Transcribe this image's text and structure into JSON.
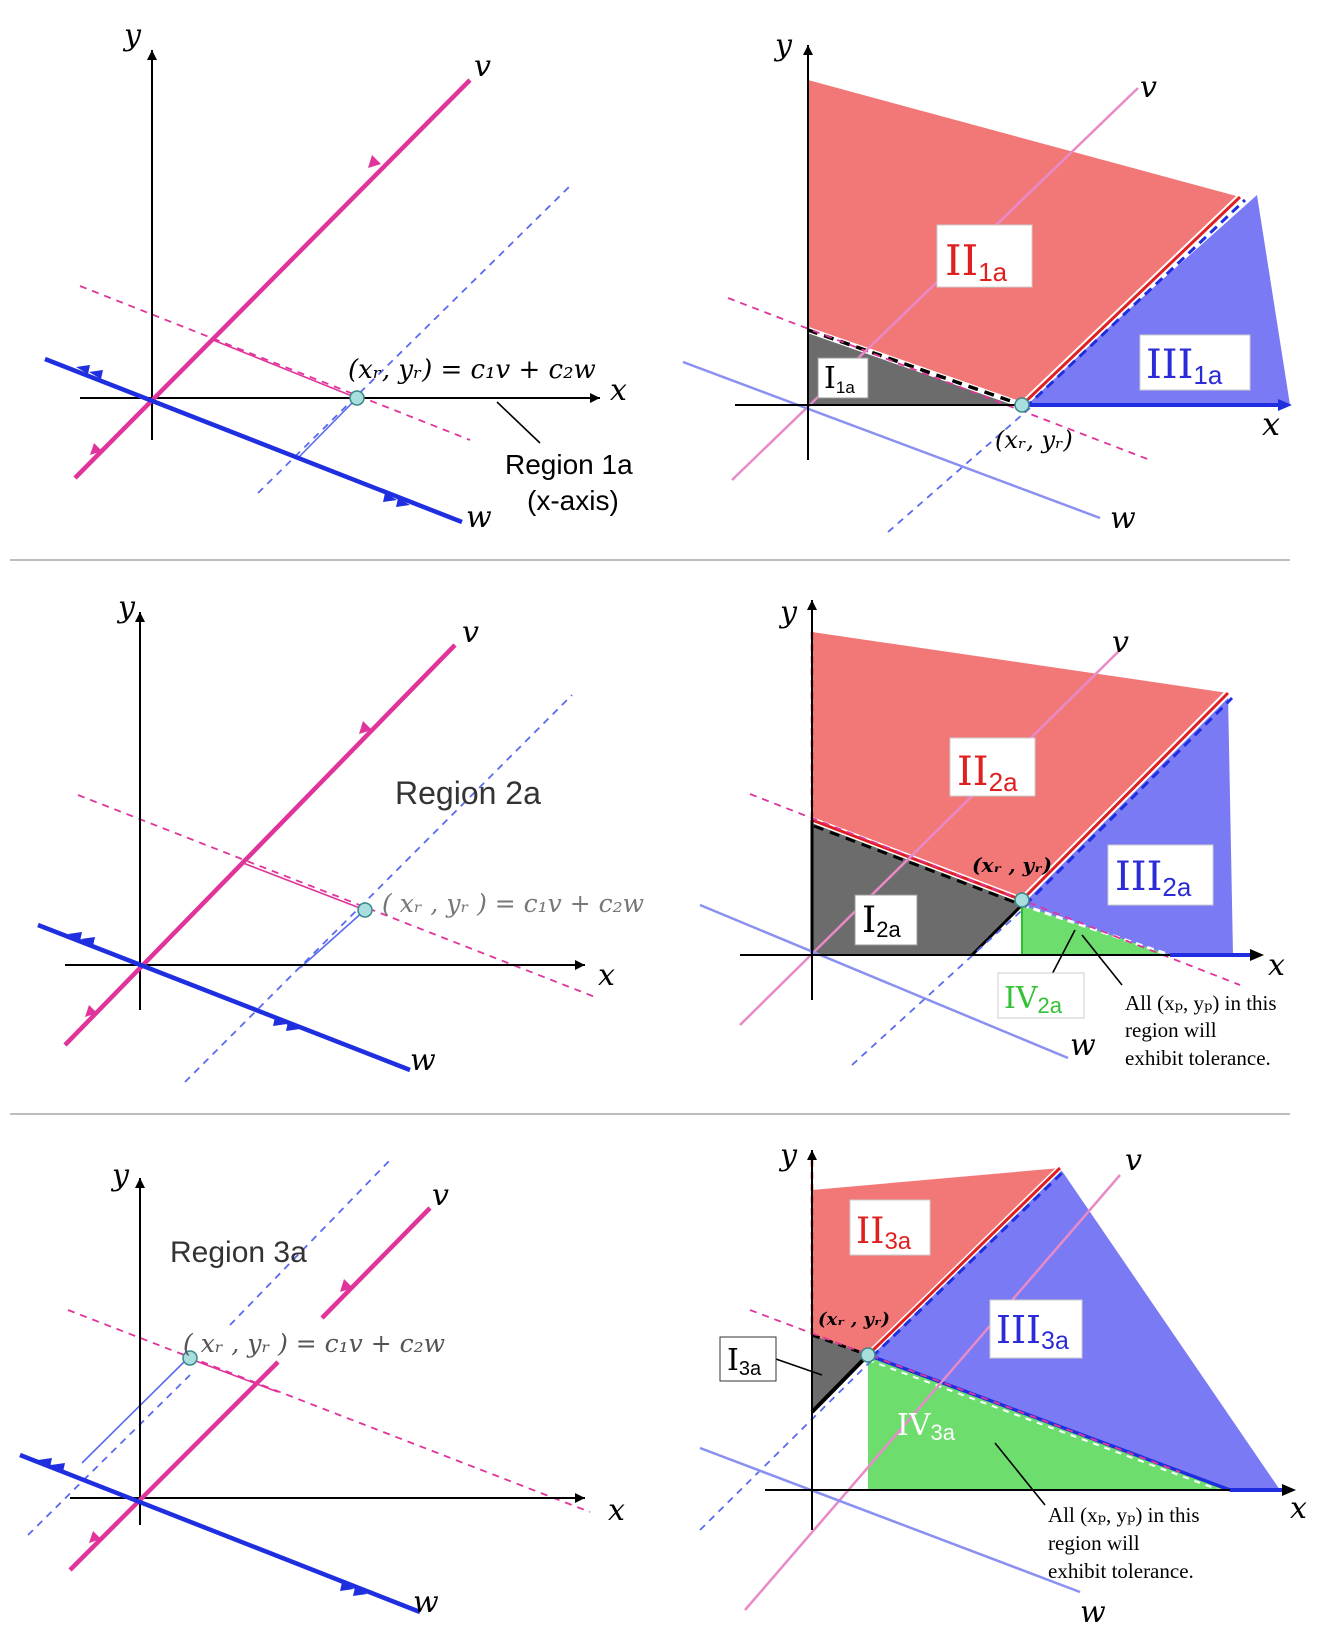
{
  "colors": {
    "v_line": "#e0349a",
    "w_line": "#1f2fe0",
    "red_region": "#f27878",
    "blue_region": "#7a7af5",
    "gray_region": "#6c6c6c",
    "green_region": "#6ddd6d",
    "green_label": "#33c233",
    "dot_fill": "#a8dede"
  },
  "rows": [
    {
      "left": {
        "x_axis": "x",
        "y_axis": "y",
        "v": "v",
        "w": "w",
        "point_label": "(xᵣ, yᵣ) = c₁v + c₂w",
        "region_title": "Region 1a",
        "region_sub": "(x-axis)"
      },
      "right": {
        "x_axis": "x",
        "y_axis": "y",
        "v": "v",
        "w": "w",
        "point_label": "(xᵣ, yᵣ)",
        "I": {
          "base": "I",
          "sub": "1a"
        },
        "II": {
          "base": "II",
          "sub": "1a"
        },
        "III": {
          "base": "III",
          "sub": "1a"
        }
      }
    },
    {
      "left": {
        "x_axis": "x",
        "y_axis": "y",
        "v": "v",
        "w": "w",
        "point_label": "( xᵣ , yᵣ ) = c₁v + c₂w",
        "region_title": "Region 2a"
      },
      "right": {
        "x_axis": "x",
        "y_axis": "y",
        "v": "v",
        "w": "w",
        "point_label": "(xᵣ , yᵣ)",
        "I": {
          "base": "I",
          "sub": "2a"
        },
        "II": {
          "base": "II",
          "sub": "2a"
        },
        "III": {
          "base": "III",
          "sub": "2a"
        },
        "IV": {
          "base": "IV",
          "sub": "2a"
        },
        "note": [
          "All (xₚ, yₚ) in this",
          "region will",
          "exhibit tolerance."
        ]
      }
    },
    {
      "left": {
        "x_axis": "x",
        "y_axis": "y",
        "v": "v",
        "w": "w",
        "point_label": "( xᵣ , yᵣ ) = c₁v + c₂w",
        "region_title": "Region 3a"
      },
      "right": {
        "x_axis": "x",
        "y_axis": "y",
        "v": "v",
        "w": "w",
        "point_label": "(xᵣ , yᵣ)",
        "I": {
          "base": "I",
          "sub": "3a"
        },
        "II": {
          "base": "II",
          "sub": "3a"
        },
        "III": {
          "base": "III",
          "sub": "3a"
        },
        "IV": {
          "base": "IV",
          "sub": "3a"
        },
        "note": [
          "All (xₚ, yₚ) in this",
          "region will",
          "exhibit tolerance."
        ]
      }
    }
  ]
}
